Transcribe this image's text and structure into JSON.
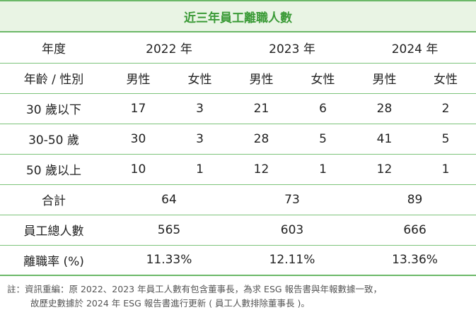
{
  "title": "近三年員工離職人數",
  "header": {
    "year_label": "年度",
    "years": [
      "2022 年",
      "2023 年",
      "2024 年"
    ],
    "age_gender_label": "年齡 / 性別",
    "male": "男性",
    "female": "女性"
  },
  "rows": [
    {
      "label": "30 歲以下",
      "values": [
        "17",
        "3",
        "21",
        "6",
        "28",
        "2"
      ]
    },
    {
      "label": "30-50 歲",
      "values": [
        "30",
        "3",
        "28",
        "5",
        "41",
        "5"
      ]
    },
    {
      "label": "50 歲以上",
      "values": [
        "10",
        "1",
        "12",
        "1",
        "12",
        "1"
      ]
    }
  ],
  "total": {
    "label": "合計",
    "values": [
      "64",
      "73",
      "89"
    ]
  },
  "employees": {
    "label": "員工總人數",
    "values": [
      "565",
      "603",
      "666"
    ]
  },
  "rate": {
    "label": "離職率 (%)",
    "values": [
      "11.33%",
      "12.11%",
      "13.36%"
    ]
  },
  "note": {
    "line1": "註：資訊重編：原 2022、2023 年員工人數有包含董事長，為求 ESG 報告書與年報數據一致，",
    "line2": "故歷史數據於 2024 年 ESG 報告書進行更新 ( 員工人數排除董事長 )。"
  }
}
